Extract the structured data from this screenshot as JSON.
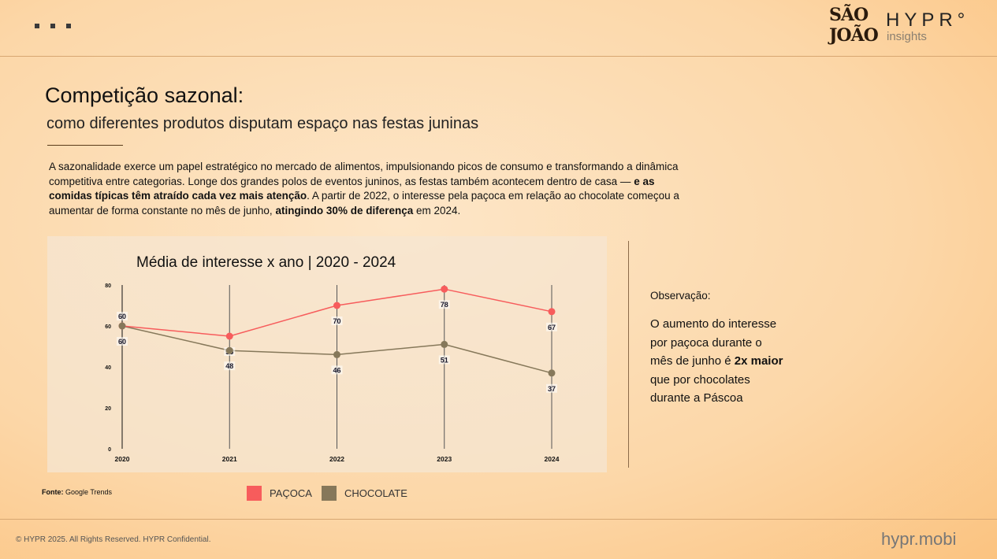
{
  "header": {
    "logo_sao_joao": "SÃO JOÃO",
    "logo_hypr": "HYPR°",
    "logo_insights": "insights"
  },
  "title": "Competição sazonal:",
  "subtitle": "como diferentes produtos disputam espaço nas festas juninas",
  "body": {
    "p1": "A sazonalidade exerce um papel estratégico no mercado de alimentos, impulsionando picos de consumo e transformando a dinâmica competitiva entre categorias. Longe dos grandes polos de eventos juninos, as festas também acontecem dentro de casa — ",
    "b1": "e as comidas típicas têm atraído cada vez mais atenção",
    "p2": ". A partir de 2022, o interesse pela paçoca em relação ao chocolate começou a aumentar de forma constante no mês de junho, ",
    "b2": "atingindo 30% de diferença",
    "p3": " em 2024."
  },
  "observation": {
    "label": "Observação:",
    "t1": "O aumento do interesse por paçoca durante o mês de junho é ",
    "bold": "2x maior",
    "t2": " que por chocolates durante a Páscoa"
  },
  "source": {
    "label": "Fonte:",
    "value": " Google Trends"
  },
  "footer": {
    "copyright": "© HYPR 2025. All Rights Reserved. HYPR Confidential.",
    "site": "hypr.mobi"
  },
  "chart_data": {
    "type": "line",
    "title": "Média de interesse x ano | 2020 - 2024",
    "categories": [
      "2020",
      "2021",
      "2022",
      "2023",
      "2024"
    ],
    "ylim": [
      0,
      80
    ],
    "yticks": [
      0,
      20,
      40,
      60,
      80
    ],
    "series": [
      {
        "name": "PAÇOCA",
        "color": "#f75c5c",
        "values": [
          60,
          55,
          70,
          78,
          67
        ]
      },
      {
        "name": "CHOCOLATE",
        "color": "#86785a",
        "values": [
          60,
          48,
          46,
          51,
          37
        ]
      }
    ],
    "legend": "bottom"
  }
}
